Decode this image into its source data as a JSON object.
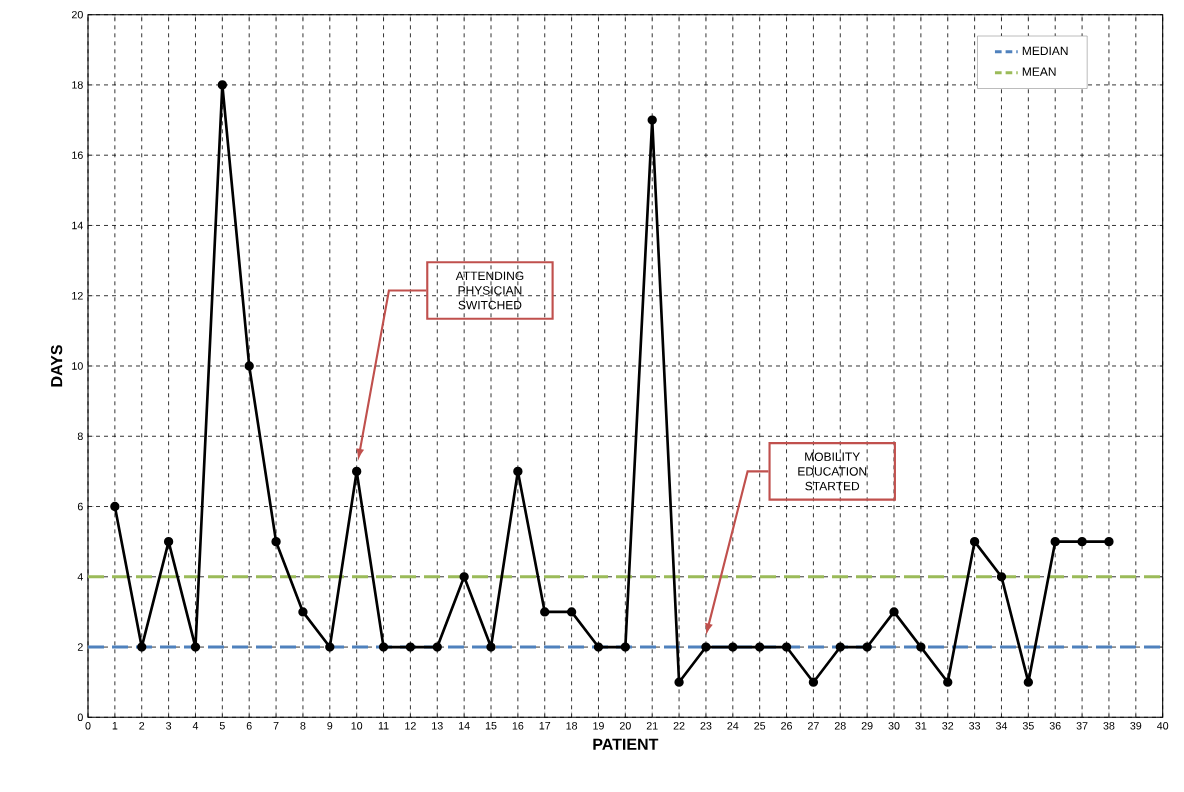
{
  "chart_data": {
    "type": "line",
    "xlabel": "PATIENT",
    "ylabel": "DAYS",
    "x": [
      1,
      2,
      3,
      4,
      5,
      6,
      7,
      8,
      9,
      10,
      11,
      12,
      13,
      14,
      15,
      16,
      17,
      18,
      19,
      20,
      21,
      22,
      23,
      24,
      25,
      26,
      27,
      28,
      29,
      30,
      31,
      32,
      33,
      34,
      35,
      36,
      37,
      38
    ],
    "series": [
      {
        "color": "#000000",
        "values": [
          6,
          2,
          5,
          2,
          18,
          10,
          5,
          3,
          2,
          7,
          2,
          2,
          2,
          4,
          2,
          7,
          3,
          3,
          2,
          2,
          17,
          1,
          2,
          2,
          2,
          2,
          1,
          2,
          2,
          3,
          2,
          1,
          5,
          4,
          1,
          5,
          5,
          5
        ]
      }
    ],
    "xlim": [
      0,
      40
    ],
    "xticks": [
      0,
      1,
      2,
      3,
      4,
      5,
      6,
      7,
      8,
      9,
      10,
      11,
      12,
      13,
      14,
      15,
      16,
      17,
      18,
      19,
      20,
      21,
      22,
      23,
      24,
      25,
      26,
      27,
      28,
      29,
      30,
      31,
      32,
      33,
      34,
      35,
      36,
      37,
      38,
      39,
      40
    ],
    "ylim": [
      0,
      20
    ],
    "yticks": [
      0,
      2,
      4,
      6,
      8,
      10,
      12,
      14,
      16,
      18,
      20
    ],
    "grid": true,
    "marker": "circle",
    "line_style": "solid",
    "legend": "top right",
    "ref_lines": [
      {
        "axis": "y",
        "value": 2,
        "label": "MEDIAN",
        "color": "#4f81bd",
        "line_style": "dashed"
      },
      {
        "axis": "y",
        "value": 4,
        "label": "MEAN",
        "color": "#9bbb59",
        "line_style": "dashed"
      }
    ],
    "annotations": [
      "ATTENDING PHYSICIAN SWITCHED",
      "MOBILITY EDUCATION STARTED"
    ]
  }
}
